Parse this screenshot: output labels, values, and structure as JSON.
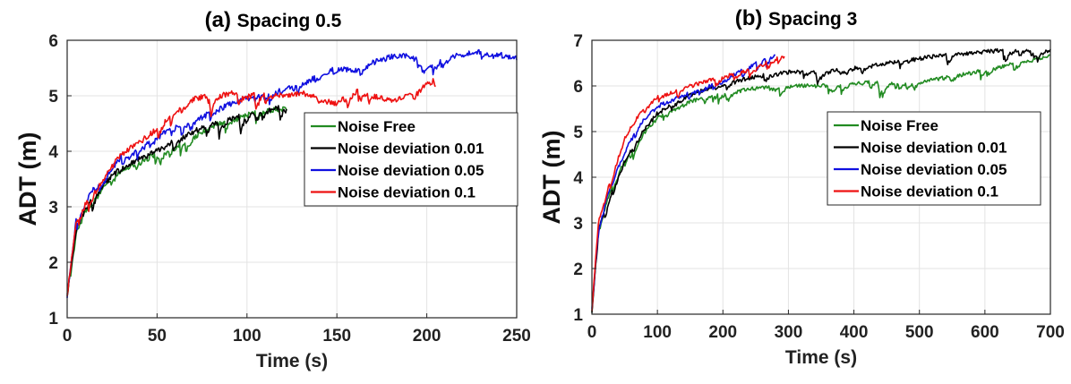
{
  "chart_data": [
    {
      "type": "line",
      "title_prefix": "(a)",
      "title": "Spacing 0.5",
      "xlabel": "Time (s)",
      "ylabel": "ADT (m)",
      "xlim": [
        0,
        250
      ],
      "ylim": [
        1,
        6
      ],
      "xticks": [
        0,
        50,
        100,
        150,
        200,
        250
      ],
      "yticks": [
        1,
        2,
        3,
        4,
        5,
        6
      ],
      "grid": true,
      "legend_position": "upper-right",
      "series": [
        {
          "name": "Noise Free",
          "color": "#228b22",
          "end": 122,
          "x": [
            0,
            5,
            10,
            20,
            30,
            40,
            50,
            60,
            70,
            80,
            90,
            100,
            110,
            122
          ],
          "y": [
            1.4,
            2.55,
            2.9,
            3.35,
            3.65,
            3.8,
            3.95,
            4.1,
            4.25,
            4.45,
            4.55,
            4.65,
            4.72,
            4.78
          ]
        },
        {
          "name": "Noise deviation 0.01",
          "color": "#000000",
          "end": 122,
          "x": [
            0,
            5,
            10,
            20,
            30,
            40,
            50,
            60,
            70,
            80,
            90,
            100,
            110,
            122
          ],
          "y": [
            1.4,
            2.6,
            2.95,
            3.4,
            3.7,
            3.85,
            4.0,
            4.2,
            4.35,
            4.5,
            4.6,
            4.7,
            4.75,
            4.8
          ]
        },
        {
          "name": "Noise deviation 0.05",
          "color": "#1010e0",
          "end": 250,
          "x": [
            0,
            5,
            10,
            20,
            30,
            40,
            50,
            60,
            70,
            80,
            90,
            100,
            110,
            120,
            130,
            140,
            150,
            160,
            170,
            180,
            190,
            200,
            210,
            220,
            230,
            240,
            250
          ],
          "y": [
            1.4,
            2.75,
            3.1,
            3.55,
            3.9,
            4.05,
            4.25,
            4.45,
            4.55,
            4.7,
            4.85,
            4.95,
            5.05,
            5.12,
            5.25,
            5.35,
            5.5,
            5.45,
            5.6,
            5.7,
            5.72,
            5.55,
            5.68,
            5.75,
            5.8,
            5.75,
            5.68
          ]
        },
        {
          "name": "Noise deviation 0.1",
          "color": "#ee1111",
          "end": 205,
          "x": [
            0,
            5,
            10,
            20,
            30,
            40,
            50,
            60,
            70,
            80,
            90,
            100,
            110,
            120,
            130,
            140,
            150,
            160,
            170,
            180,
            190,
            200,
            205
          ],
          "y": [
            1.4,
            2.7,
            3.05,
            3.5,
            3.95,
            4.15,
            4.4,
            4.75,
            4.95,
            5.0,
            5.05,
            5.0,
            5.05,
            5.0,
            5.05,
            4.95,
            4.85,
            5.1,
            5.05,
            4.9,
            5.0,
            5.2,
            5.3
          ]
        }
      ]
    },
    {
      "type": "line",
      "title_prefix": "(b)",
      "title": "Spacing 3",
      "xlabel": "Time (s)",
      "ylabel": "ADT (m)",
      "xlim": [
        0,
        700
      ],
      "ylim": [
        1,
        7
      ],
      "xticks": [
        0,
        100,
        200,
        300,
        400,
        500,
        600,
        700
      ],
      "yticks": [
        1,
        2,
        3,
        4,
        5,
        6,
        7
      ],
      "grid": true,
      "legend_position": "center-right",
      "series": [
        {
          "name": "Noise Free",
          "color": "#228b22",
          "end": 700,
          "x": [
            0,
            10,
            25,
            50,
            75,
            100,
            150,
            200,
            250,
            300,
            350,
            400,
            450,
            500,
            550,
            600,
            650,
            700
          ],
          "y": [
            1.1,
            2.9,
            3.6,
            4.4,
            4.9,
            5.3,
            5.65,
            5.85,
            5.95,
            6.0,
            6.0,
            6.05,
            6.1,
            6.1,
            6.2,
            6.35,
            6.5,
            6.65
          ]
        },
        {
          "name": "Noise deviation 0.01",
          "color": "#000000",
          "end": 700,
          "x": [
            0,
            10,
            25,
            50,
            75,
            100,
            150,
            200,
            250,
            300,
            350,
            400,
            450,
            500,
            550,
            600,
            650,
            700
          ],
          "y": [
            1.1,
            2.9,
            3.55,
            4.35,
            4.95,
            5.4,
            5.8,
            6.05,
            6.2,
            6.3,
            6.3,
            6.4,
            6.5,
            6.6,
            6.7,
            6.75,
            6.8,
            6.8
          ]
        },
        {
          "name": "Noise deviation 0.05",
          "color": "#1010e0",
          "end": 280,
          "x": [
            0,
            10,
            25,
            50,
            75,
            100,
            150,
            200,
            250,
            280
          ],
          "y": [
            1.1,
            2.9,
            3.65,
            4.55,
            5.2,
            5.55,
            5.85,
            6.1,
            6.5,
            6.7
          ]
        },
        {
          "name": "Noise deviation 0.1",
          "color": "#ee1111",
          "end": 295,
          "x": [
            0,
            10,
            25,
            50,
            75,
            100,
            150,
            200,
            250,
            295
          ],
          "y": [
            1.1,
            3.0,
            3.8,
            4.85,
            5.45,
            5.75,
            6.0,
            6.2,
            6.4,
            6.7
          ]
        }
      ]
    }
  ]
}
